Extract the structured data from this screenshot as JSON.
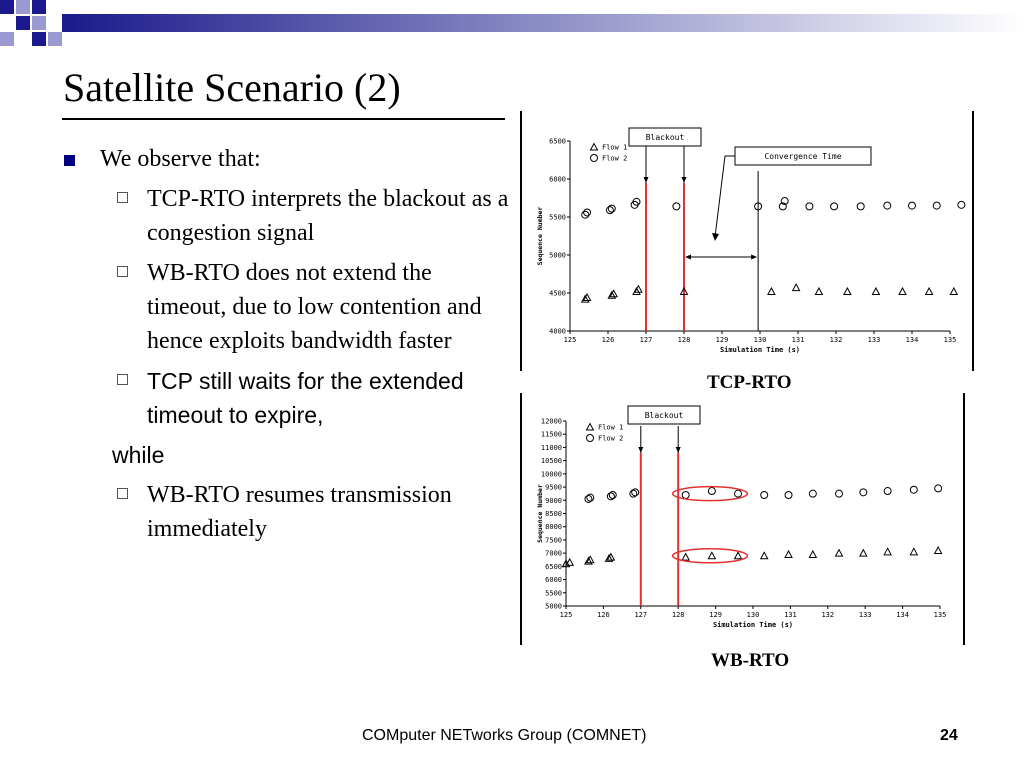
{
  "slide": {
    "title": "Satellite Scenario (2)",
    "footer": "COMputer NETworks Group (COMNET)",
    "page_number": "24",
    "colors": {
      "bullet": "#000080",
      "accent_red": "#e53030",
      "deco_navy": "#1a1a8c"
    }
  },
  "bullets": {
    "main": "We observe that:",
    "sub1": "TCP-RTO interprets the blackout as a congestion signal",
    "sub2": "WB-RTO does not extend the timeout, due to low contention and hence exploits bandwidth faster",
    "sub3": "TCP still waits for the extended timeout to expire,",
    "sub3_cont": "while",
    "sub4": "WB-RTO resumes transmission immediately"
  },
  "captions": {
    "top": "TCP-RTO",
    "bottom": "WB-RTO"
  },
  "chart_data": [
    {
      "type": "scatter",
      "xlabel": "Simulation Time (s)",
      "ylabel": "Sequence Number",
      "xlim": [
        125,
        135
      ],
      "ylim": [
        4000,
        6500
      ],
      "xticks": [
        125,
        126,
        127,
        128,
        129,
        130,
        131,
        132,
        133,
        134,
        135
      ],
      "yticks": [
        4000,
        4500,
        5000,
        5500,
        6000,
        6500
      ],
      "annotations": [
        "Blackout",
        "Convergence Time"
      ],
      "blackout": [
        127,
        128
      ],
      "convergence_end": 129.95,
      "series": [
        {
          "name": "Flow 1",
          "marker": "triangle",
          "x": [
            125.4,
            125.45,
            126.1,
            126.15,
            126.75,
            126.8,
            128.0,
            130.3,
            130.95,
            131.55,
            132.3,
            133.05,
            133.75,
            134.45,
            135.1
          ],
          "y": [
            4420,
            4440,
            4470,
            4490,
            4520,
            4550,
            4520,
            4520,
            4570,
            4520,
            4520,
            4520,
            4520,
            4520,
            4520
          ]
        },
        {
          "name": "Flow 2",
          "marker": "circle",
          "x": [
            125.4,
            125.45,
            126.05,
            126.1,
            126.7,
            126.75,
            127.8,
            129.95,
            130.6,
            130.65,
            131.3,
            131.95,
            132.65,
            133.35,
            134.0,
            134.65,
            135.3
          ],
          "y": [
            5530,
            5560,
            5590,
            5610,
            5660,
            5700,
            5640,
            5640,
            5640,
            5710,
            5640,
            5640,
            5640,
            5650,
            5650,
            5650,
            5660
          ]
        }
      ]
    },
    {
      "type": "scatter",
      "xlabel": "Simulation Time (s)",
      "ylabel": "Sequence Number",
      "xlim": [
        125,
        135
      ],
      "ylim": [
        5000,
        12000
      ],
      "xticks": [
        125,
        126,
        127,
        128,
        129,
        130,
        131,
        132,
        133,
        134,
        135
      ],
      "yticks": [
        5000,
        5500,
        6000,
        6500,
        7000,
        7500,
        8000,
        8500,
        9000,
        9500,
        10000,
        10500,
        11000,
        11500,
        12000
      ],
      "annotations": [
        "Blackout"
      ],
      "blackout": [
        127,
        128
      ],
      "highlighted_regions": 4,
      "series": [
        {
          "name": "Flow 1",
          "marker": "triangle",
          "x": [
            125.0,
            125.1,
            125.6,
            125.65,
            126.15,
            126.2,
            128.2,
            128.9,
            129.6,
            130.3,
            130.95,
            131.6,
            132.3,
            132.95,
            133.6,
            134.3,
            134.95
          ],
          "y": [
            6600,
            6650,
            6700,
            6750,
            6800,
            6850,
            6850,
            6900,
            6900,
            6900,
            6950,
            6950,
            7000,
            7000,
            7050,
            7050,
            7100
          ]
        },
        {
          "name": "Flow 2",
          "marker": "circle",
          "x": [
            125.6,
            125.65,
            126.2,
            126.25,
            126.8,
            126.85,
            128.2,
            128.9,
            129.6,
            130.3,
            130.95,
            131.6,
            132.3,
            132.95,
            133.6,
            134.3,
            134.95
          ],
          "y": [
            9050,
            9100,
            9150,
            9200,
            9250,
            9300,
            9200,
            9350,
            9250,
            9200,
            9200,
            9250,
            9250,
            9300,
            9350,
            9400,
            9450
          ]
        }
      ]
    }
  ]
}
